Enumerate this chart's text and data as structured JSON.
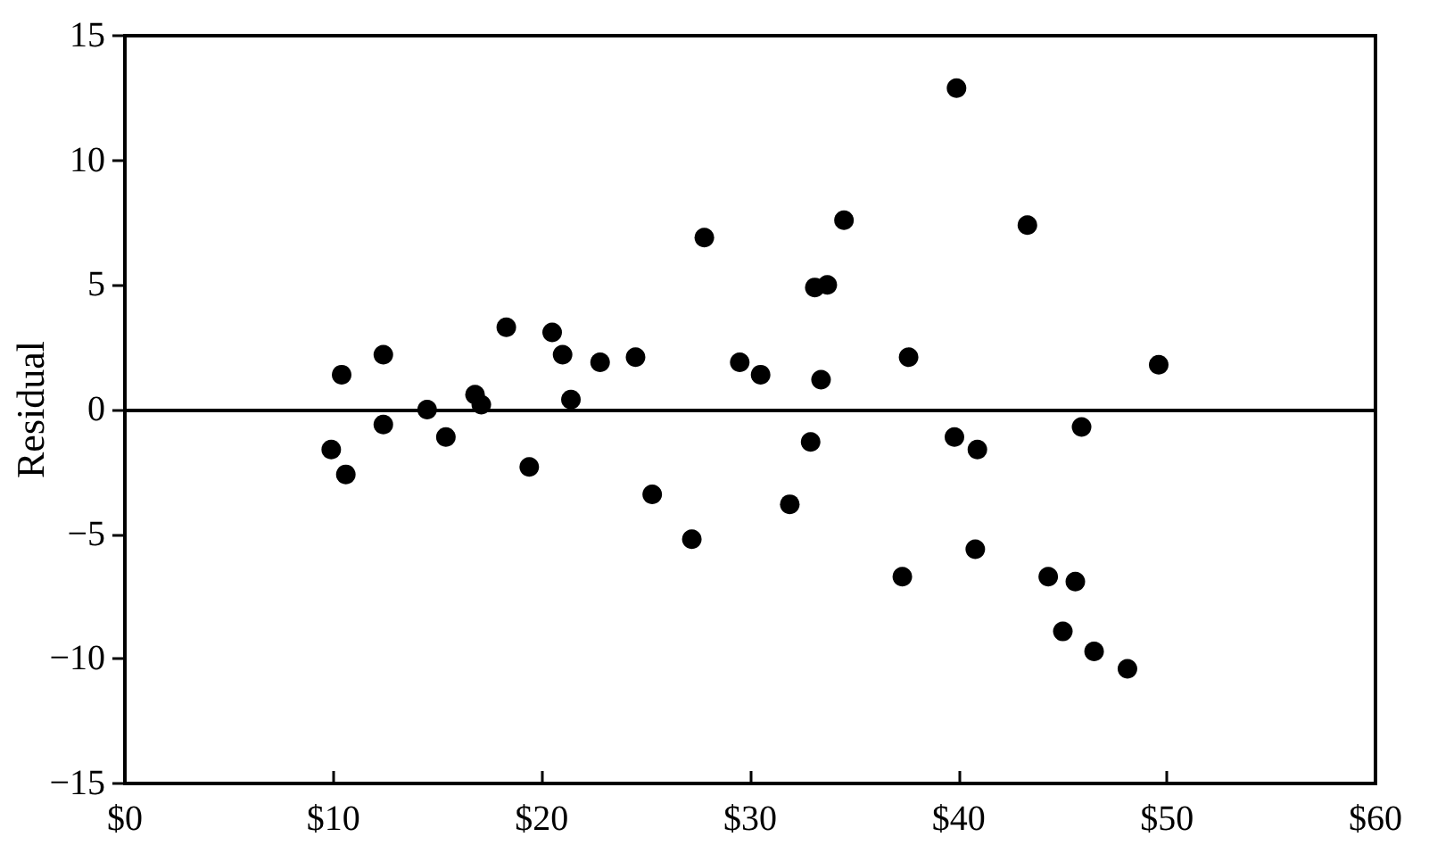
{
  "chart_data": {
    "type": "scatter",
    "ylabel": "Residual",
    "color": "#000000",
    "marker": "circle",
    "x": [
      9.9,
      10.4,
      10.6,
      12.4,
      12.4,
      14.5,
      15.4,
      16.8,
      17.1,
      18.3,
      19.4,
      20.5,
      21.0,
      21.4,
      22.8,
      24.5,
      25.3,
      27.2,
      27.8,
      29.5,
      30.5,
      31.9,
      32.9,
      33.1,
      33.4,
      33.7,
      34.5,
      37.3,
      37.6,
      39.8,
      39.9,
      40.8,
      40.9,
      43.3,
      44.3,
      45.0,
      45.6,
      45.9,
      46.5,
      48.1,
      49.6
    ],
    "values": [
      -1.6,
      1.4,
      -2.6,
      2.2,
      -0.6,
      0.0,
      -1.1,
      0.6,
      0.2,
      3.3,
      -2.3,
      3.1,
      2.2,
      0.4,
      1.9,
      2.1,
      -3.4,
      -5.2,
      6.9,
      1.9,
      1.4,
      -3.8,
      -1.3,
      4.9,
      1.2,
      5.0,
      7.6,
      -6.7,
      2.1,
      -1.1,
      12.9,
      -5.6,
      -1.6,
      7.4,
      -6.7,
      -8.9,
      -6.9,
      -0.7,
      -9.7,
      -10.4,
      1.8
    ],
    "xlim": [
      0,
      60
    ],
    "xticks": [
      {
        "value": 0,
        "label": "$0"
      },
      {
        "value": 10,
        "label": "$10"
      },
      {
        "value": 20,
        "label": "$20"
      },
      {
        "value": 30,
        "label": "$30"
      },
      {
        "value": 40,
        "label": "$40"
      },
      {
        "value": 50,
        "label": "$50"
      },
      {
        "value": 60,
        "label": "$60"
      }
    ],
    "ylim": [
      -15,
      15
    ],
    "yticks": [
      {
        "value": -15,
        "label": "−15"
      },
      {
        "value": -10,
        "label": "−10"
      },
      {
        "value": -5,
        "label": "−5"
      },
      0,
      5,
      10,
      15
    ],
    "ref_lines": [
      {
        "axis": "y",
        "value": 0,
        "color": "#000000",
        "line_style": "solid"
      }
    ]
  }
}
